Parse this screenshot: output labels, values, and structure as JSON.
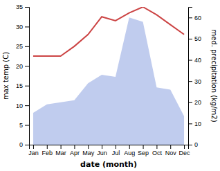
{
  "chart_data": {
    "type": "line",
    "xlabel": "date (month)",
    "ylabel": "max temp (C)",
    "y2label": "med. precipitation (kg/m2)",
    "categories": [
      "Jan",
      "Feb",
      "Mar",
      "Apr",
      "May",
      "Jun",
      "Jul",
      "Aug",
      "Sep",
      "Oct",
      "Nov",
      "Dec"
    ],
    "series": [
      {
        "type": "area",
        "axis": "y2",
        "color": "#c0ccee",
        "values": [
          15.0,
          19.0,
          20.0,
          21.0,
          29.0,
          33.0,
          32.0,
          60.0,
          58.0,
          27.0,
          26.0,
          13.5
        ]
      },
      {
        "type": "line",
        "axis": "y",
        "color": "#cc4444",
        "values": [
          22.5,
          22.5,
          22.5,
          25.0,
          28.0,
          32.5,
          31.5,
          33.5,
          35.0,
          33.0,
          30.5,
          28.0
        ]
      }
    ],
    "ylim": [
      0,
      35
    ],
    "yticks": [
      0,
      5,
      10,
      15,
      20,
      25,
      30,
      35
    ],
    "y2lim": [
      0,
      65
    ],
    "y2ticks": [
      0,
      10,
      20,
      30,
      40,
      50,
      60
    ],
    "grid": false
  }
}
